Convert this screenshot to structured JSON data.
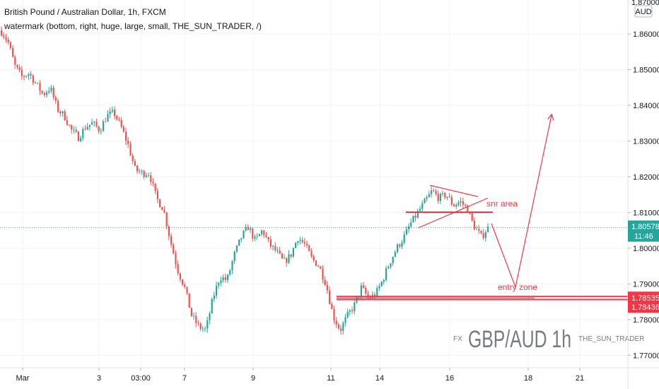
{
  "header": {
    "symbol_line": "British Pound / Australian Dollar, 1h, FXCM",
    "study_line": "watermark (bottom, right, huge, large, small, THE_SUN_TRADER, /)"
  },
  "price_axis": {
    "currency": "AUD",
    "top_partial_label": "1.87000"
  },
  "time_axis": {
    "labels": [
      "Mar",
      "3",
      "03:00",
      "7",
      "9",
      "11",
      "14",
      "16",
      "18",
      "21"
    ]
  },
  "colors": {
    "up": "#26a69a",
    "down": "#ef5350",
    "drawing": "#f23645",
    "last_price_line": "#26a69a",
    "label_red": "#f23645",
    "watermark": "#787b86"
  },
  "price_labels": [
    {
      "text": "1.80578",
      "sub": "11:46",
      "value": 1.80578,
      "color": "#26a69a"
    },
    {
      "text": "1.78535",
      "value": 1.78535,
      "color": "#f23645"
    },
    {
      "text": "1.78436",
      "value": 1.78436,
      "color": "#f23645"
    }
  ],
  "annotations": {
    "snr_label": "snr area",
    "entry_label": "entry zone"
  },
  "watermark": {
    "left": "FX",
    "big": "GBP/AUD 1h",
    "right": "THE_SUN_TRADER"
  },
  "chart_data": {
    "type": "candlestick",
    "title": "British Pound / Australian Dollar, 1h, FXCM",
    "y_unit": "AUD",
    "ylim": [
      1.7665,
      1.8695
    ],
    "y_ticks": [
      1.77,
      1.78,
      1.79,
      1.8,
      1.81,
      1.82,
      1.83,
      1.84,
      1.85,
      1.86
    ],
    "y_tick_labels": [
      "1.77000",
      "1.78000",
      "1.79000",
      "1.80000",
      "1.81000",
      "1.82000",
      "1.83000",
      "1.84000",
      "1.85000",
      "1.86000"
    ],
    "x_tick_labels": [
      "Mar",
      "3",
      "03:00",
      "7",
      "9",
      "11",
      "14",
      "16",
      "18",
      "21"
    ],
    "close_path": [
      [
        0,
        1.861
      ],
      [
        10,
        1.858
      ],
      [
        20,
        1.851
      ],
      [
        30,
        1.848
      ],
      [
        40,
        1.849
      ],
      [
        50,
        1.846
      ],
      [
        60,
        1.843
      ],
      [
        70,
        1.845
      ],
      [
        80,
        1.839
      ],
      [
        90,
        1.837
      ],
      [
        100,
        1.833
      ],
      [
        110,
        1.831
      ],
      [
        120,
        1.834
      ],
      [
        130,
        1.835
      ],
      [
        140,
        1.833
      ],
      [
        150,
        1.837
      ],
      [
        160,
        1.838
      ],
      [
        170,
        1.834
      ],
      [
        180,
        1.829
      ],
      [
        190,
        1.822
      ],
      [
        200,
        1.821
      ],
      [
        210,
        1.821
      ],
      [
        220,
        1.814
      ],
      [
        230,
        1.811
      ],
      [
        240,
        1.802
      ],
      [
        250,
        1.794
      ],
      [
        260,
        1.789
      ],
      [
        270,
        1.781
      ],
      [
        280,
        1.778
      ],
      [
        290,
        1.777
      ],
      [
        300,
        1.786
      ],
      [
        310,
        1.792
      ],
      [
        320,
        1.791
      ],
      [
        330,
        1.798
      ],
      [
        340,
        1.803
      ],
      [
        350,
        1.806
      ],
      [
        360,
        1.802
      ],
      [
        370,
        1.805
      ],
      [
        380,
        1.801
      ],
      [
        390,
        1.799
      ],
      [
        400,
        1.796
      ],
      [
        410,
        1.798
      ],
      [
        420,
        1.803
      ],
      [
        430,
        1.801
      ],
      [
        440,
        1.797
      ],
      [
        450,
        1.795
      ],
      [
        460,
        1.79
      ],
      [
        470,
        1.781
      ],
      [
        480,
        1.777
      ],
      [
        490,
        1.781
      ],
      [
        500,
        1.784
      ],
      [
        510,
        1.789
      ],
      [
        520,
        1.786
      ],
      [
        530,
        1.787
      ],
      [
        540,
        1.791
      ],
      [
        550,
        1.796
      ],
      [
        560,
        1.8
      ],
      [
        570,
        1.803
      ],
      [
        580,
        1.807
      ],
      [
        590,
        1.81
      ],
      [
        600,
        1.813
      ],
      [
        610,
        1.816
      ],
      [
        620,
        1.814
      ],
      [
        630,
        1.815
      ],
      [
        640,
        1.812
      ],
      [
        650,
        1.813
      ],
      [
        660,
        1.811
      ],
      [
        665,
        1.808
      ],
      [
        670,
        1.806
      ],
      [
        680,
        1.803
      ],
      [
        686,
        1.805
      ],
      [
        690,
        1.8058
      ]
    ],
    "last_price": 1.80578
  }
}
